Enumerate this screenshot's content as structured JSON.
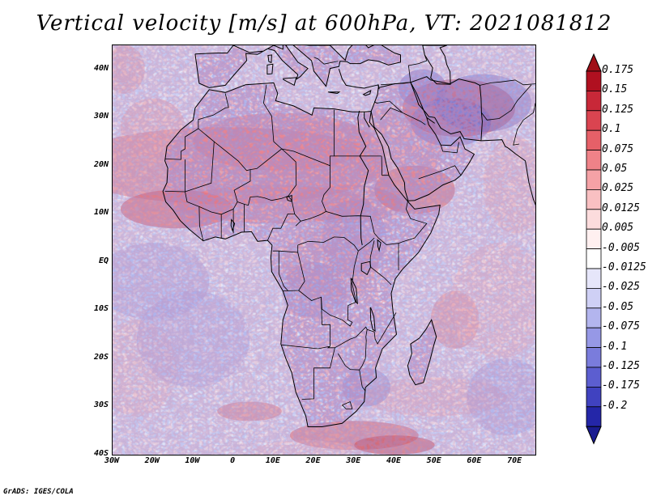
{
  "title": "Vertical velocity [m/s] at 600hPa, VT: 2021081812",
  "footer": "GrADS: IGES/COLA",
  "map": {
    "region": "Africa",
    "lat_ticks": [
      {
        "value": 40,
        "label": "40N"
      },
      {
        "value": 30,
        "label": "30N"
      },
      {
        "value": 20,
        "label": "20N"
      },
      {
        "value": 10,
        "label": "10N"
      },
      {
        "value": 0,
        "label": "EQ"
      },
      {
        "value": -10,
        "label": "10S"
      },
      {
        "value": -20,
        "label": "20S"
      },
      {
        "value": -30,
        "label": "30S"
      },
      {
        "value": -40,
        "label": "40S"
      }
    ],
    "lon_ticks": [
      {
        "value": -30,
        "label": "30W"
      },
      {
        "value": -20,
        "label": "20W"
      },
      {
        "value": -10,
        "label": "10W"
      },
      {
        "value": 0,
        "label": "0"
      },
      {
        "value": 10,
        "label": "10E"
      },
      {
        "value": 20,
        "label": "20E"
      },
      {
        "value": 30,
        "label": "30E"
      },
      {
        "value": 40,
        "label": "40E"
      },
      {
        "value": 50,
        "label": "50E"
      },
      {
        "value": 60,
        "label": "60E"
      },
      {
        "value": 70,
        "label": "70E"
      }
    ],
    "lon_range": [
      -30,
      75
    ],
    "lat_range": [
      -40,
      45
    ]
  },
  "colorbar": {
    "units": "m/s",
    "entries": [
      {
        "label": "0.175",
        "color": "#b01020"
      },
      {
        "label": "0.15",
        "color": "#c82838"
      },
      {
        "label": "0.125",
        "color": "#da4450"
      },
      {
        "label": "0.1",
        "color": "#e66068"
      },
      {
        "label": "0.075",
        "color": "#ef8288"
      },
      {
        "label": "0.05",
        "color": "#f5a2a6"
      },
      {
        "label": "0.025",
        "color": "#f9c0c2"
      },
      {
        "label": "0.0125",
        "color": "#fcdcdd"
      },
      {
        "label": "0.005",
        "color": "#fff0f0"
      },
      {
        "label": "-0.005",
        "color": "#ffffff"
      },
      {
        "label": "-0.0125",
        "color": "#e6e6fa"
      },
      {
        "label": "-0.025",
        "color": "#cfd0f5"
      },
      {
        "label": "-0.05",
        "color": "#b3b5ee"
      },
      {
        "label": "-0.075",
        "color": "#9698e6"
      },
      {
        "label": "-0.1",
        "color": "#7a7cdc"
      },
      {
        "label": "-0.125",
        "color": "#5c5ed0"
      },
      {
        "label": "-0.175",
        "color": "#4042c0"
      },
      {
        "label": "-0.2",
        "color": "#2426a8"
      }
    ],
    "top_color": "#a01018",
    "bottom_color": "#1a1c90"
  }
}
